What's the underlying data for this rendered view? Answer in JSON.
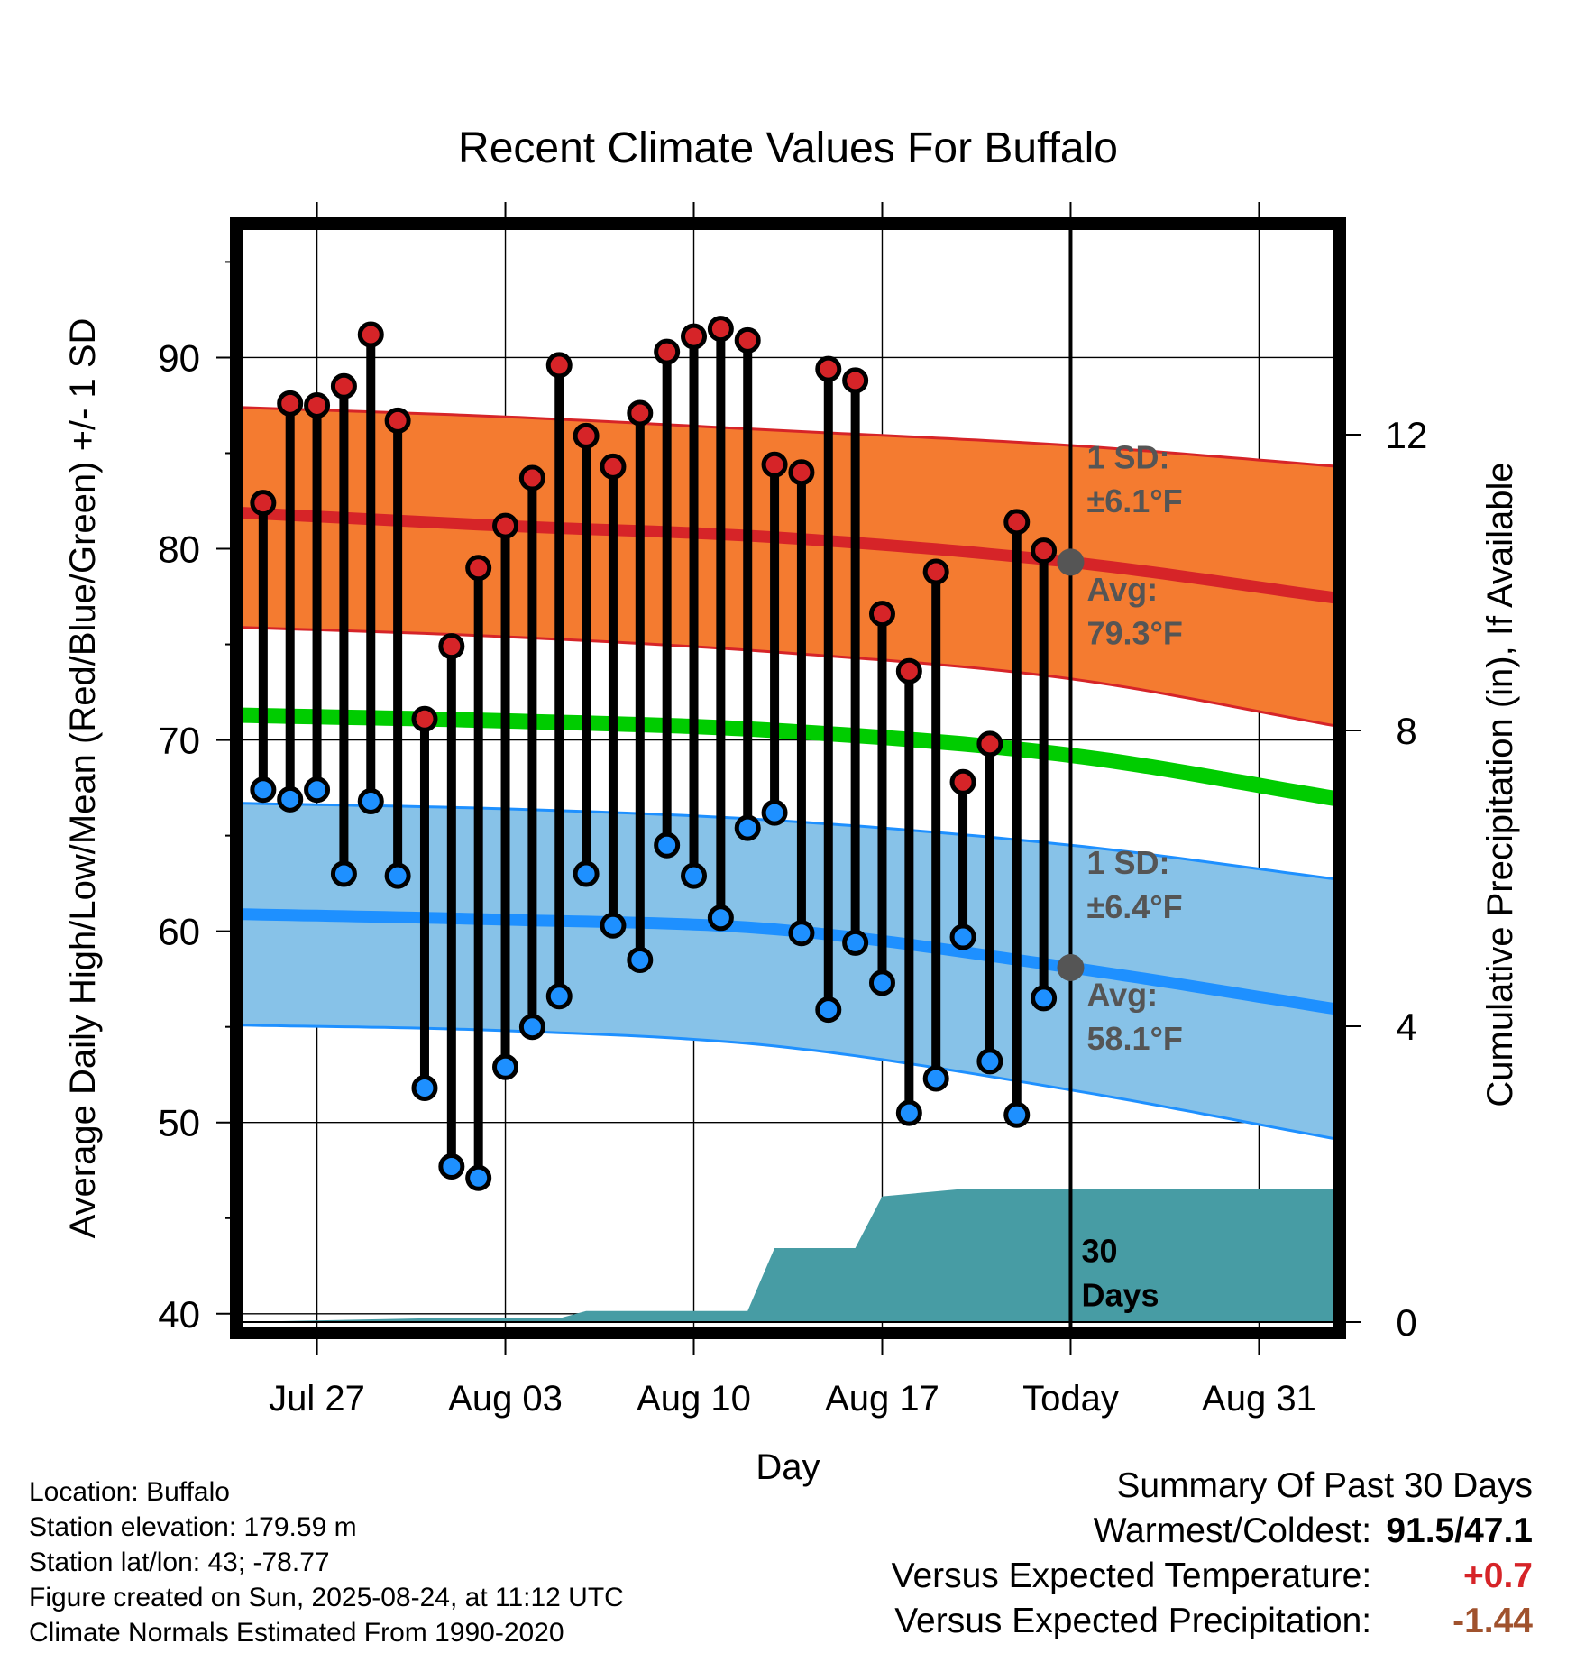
{
  "chart_data": {
    "type": "line",
    "title": "Recent Climate Values For Buffalo",
    "xlabel": "Day",
    "ylabel": "Average Daily High/Low/Mean (Red/Blue/Green) +/- 1 SD",
    "y2label": "Cumulative Precipitation (in), If Available",
    "ylim": [
      39,
      97
    ],
    "y2lim": [
      0,
      15
    ],
    "x_tick_labels": [
      "Jul 27",
      "Aug 03",
      "Aug 10",
      "Aug 17",
      "Today",
      "Aug 31"
    ],
    "x_tick_days": [
      "2025-07-27",
      "2025-08-03",
      "2025-08-10",
      "2025-08-17",
      "2025-08-24",
      "2025-08-31"
    ],
    "y_ticks": [
      40,
      50,
      60,
      70,
      80,
      90
    ],
    "y2_ticks": [
      0,
      4,
      8,
      12
    ],
    "grid": true,
    "today": "2025-08-24",
    "x_range": [
      "2025-07-24",
      "2025-09-03"
    ],
    "daily": {
      "dates": [
        "2025-07-25",
        "2025-07-26",
        "2025-07-27",
        "2025-07-28",
        "2025-07-29",
        "2025-07-30",
        "2025-07-31",
        "2025-08-01",
        "2025-08-02",
        "2025-08-03",
        "2025-08-04",
        "2025-08-05",
        "2025-08-06",
        "2025-08-07",
        "2025-08-08",
        "2025-08-09",
        "2025-08-10",
        "2025-08-11",
        "2025-08-12",
        "2025-08-13",
        "2025-08-14",
        "2025-08-15",
        "2025-08-16",
        "2025-08-17",
        "2025-08-18",
        "2025-08-19",
        "2025-08-20",
        "2025-08-21",
        "2025-08-22",
        "2025-08-23"
      ],
      "highs": [
        82.4,
        87.6,
        87.5,
        88.5,
        91.2,
        86.7,
        71.1,
        74.9,
        79.0,
        81.2,
        83.7,
        89.6,
        85.9,
        84.3,
        87.1,
        90.3,
        91.1,
        91.5,
        90.9,
        84.4,
        84.0,
        89.4,
        88.8,
        76.6,
        73.6,
        78.8,
        67.8,
        69.8,
        81.4,
        79.9
      ],
      "lows": [
        67.4,
        66.9,
        67.4,
        63.0,
        66.8,
        62.9,
        51.8,
        47.7,
        47.1,
        52.9,
        55.0,
        56.6,
        63.0,
        60.3,
        58.5,
        64.5,
        62.9,
        60.7,
        65.4,
        66.2,
        59.9,
        55.9,
        59.4,
        57.3,
        50.5,
        52.3,
        59.7,
        53.2,
        50.4,
        56.5
      ]
    },
    "normals": {
      "dates": [
        "2025-07-24",
        "2025-08-03",
        "2025-08-13",
        "2025-08-24",
        "2025-09-03"
      ],
      "high_mean": [
        81.9,
        81.2,
        80.6,
        79.3,
        77.4
      ],
      "high_upper": [
        87.4,
        86.9,
        86.2,
        85.4,
        84.3
      ],
      "high_lower": [
        75.9,
        75.4,
        74.6,
        73.2,
        70.7
      ],
      "mean": [
        71.3,
        71.0,
        70.5,
        69.2,
        66.9
      ],
      "low_mean": [
        60.9,
        60.6,
        60.1,
        58.1,
        55.9
      ],
      "low_upper": [
        66.7,
        66.4,
        65.8,
        64.5,
        62.7
      ],
      "low_lower": [
        55.1,
        54.8,
        54.0,
        51.7,
        49.1
      ]
    },
    "precip": {
      "dates": [
        "2025-07-24",
        "2025-07-31",
        "2025-08-05",
        "2025-08-06",
        "2025-08-12",
        "2025-08-13",
        "2025-08-16",
        "2025-08-17",
        "2025-08-20",
        "2025-09-03"
      ],
      "values": [
        0.0,
        0.05,
        0.05,
        0.15,
        0.15,
        1.0,
        1.0,
        1.7,
        1.8,
        1.8
      ]
    },
    "annotations": {
      "high_sd_label": "1 SD:",
      "high_sd_value": "±6.1°F",
      "high_avg_label": "Avg:",
      "high_avg_value": "79.3°F",
      "low_sd_label": "1 SD:",
      "low_sd_value": "±6.4°F",
      "low_avg_label": "Avg:",
      "low_avg_value": "58.1°F",
      "precip_label_1": "30",
      "precip_label_2": "Days"
    },
    "colors": {
      "high_band": "#f47b30",
      "high_line": "#d62428",
      "low_band": "#87c2e8",
      "low_line": "#1e90ff",
      "mean_line": "#00cc00",
      "precip": "#479ca4",
      "high_dot": "#d62428",
      "low_dot": "#1e90ff",
      "annotation": "#555555",
      "today_marker": "#555555"
    }
  },
  "info": {
    "location": "Location: Buffalo",
    "elevation": "Station elevation: 179.59 m",
    "latlon": "Station lat/lon: 43; -78.77",
    "created": "Figure created on Sun, 2025-08-24, at 11:12 UTC",
    "normals": "Climate Normals Estimated From 1990-2020"
  },
  "summary": {
    "title": "Summary Of Past 30 Days",
    "warm_cold_label": "Warmest/Coldest:",
    "warm_cold_value": "91.5/47.1",
    "temp_label": "Versus Expected Temperature:",
    "temp_value": "+0.7",
    "temp_color": "#d62428",
    "precip_label": "Versus Expected Precipitation:",
    "precip_value": "-1.44",
    "precip_color": "#a0522d"
  }
}
